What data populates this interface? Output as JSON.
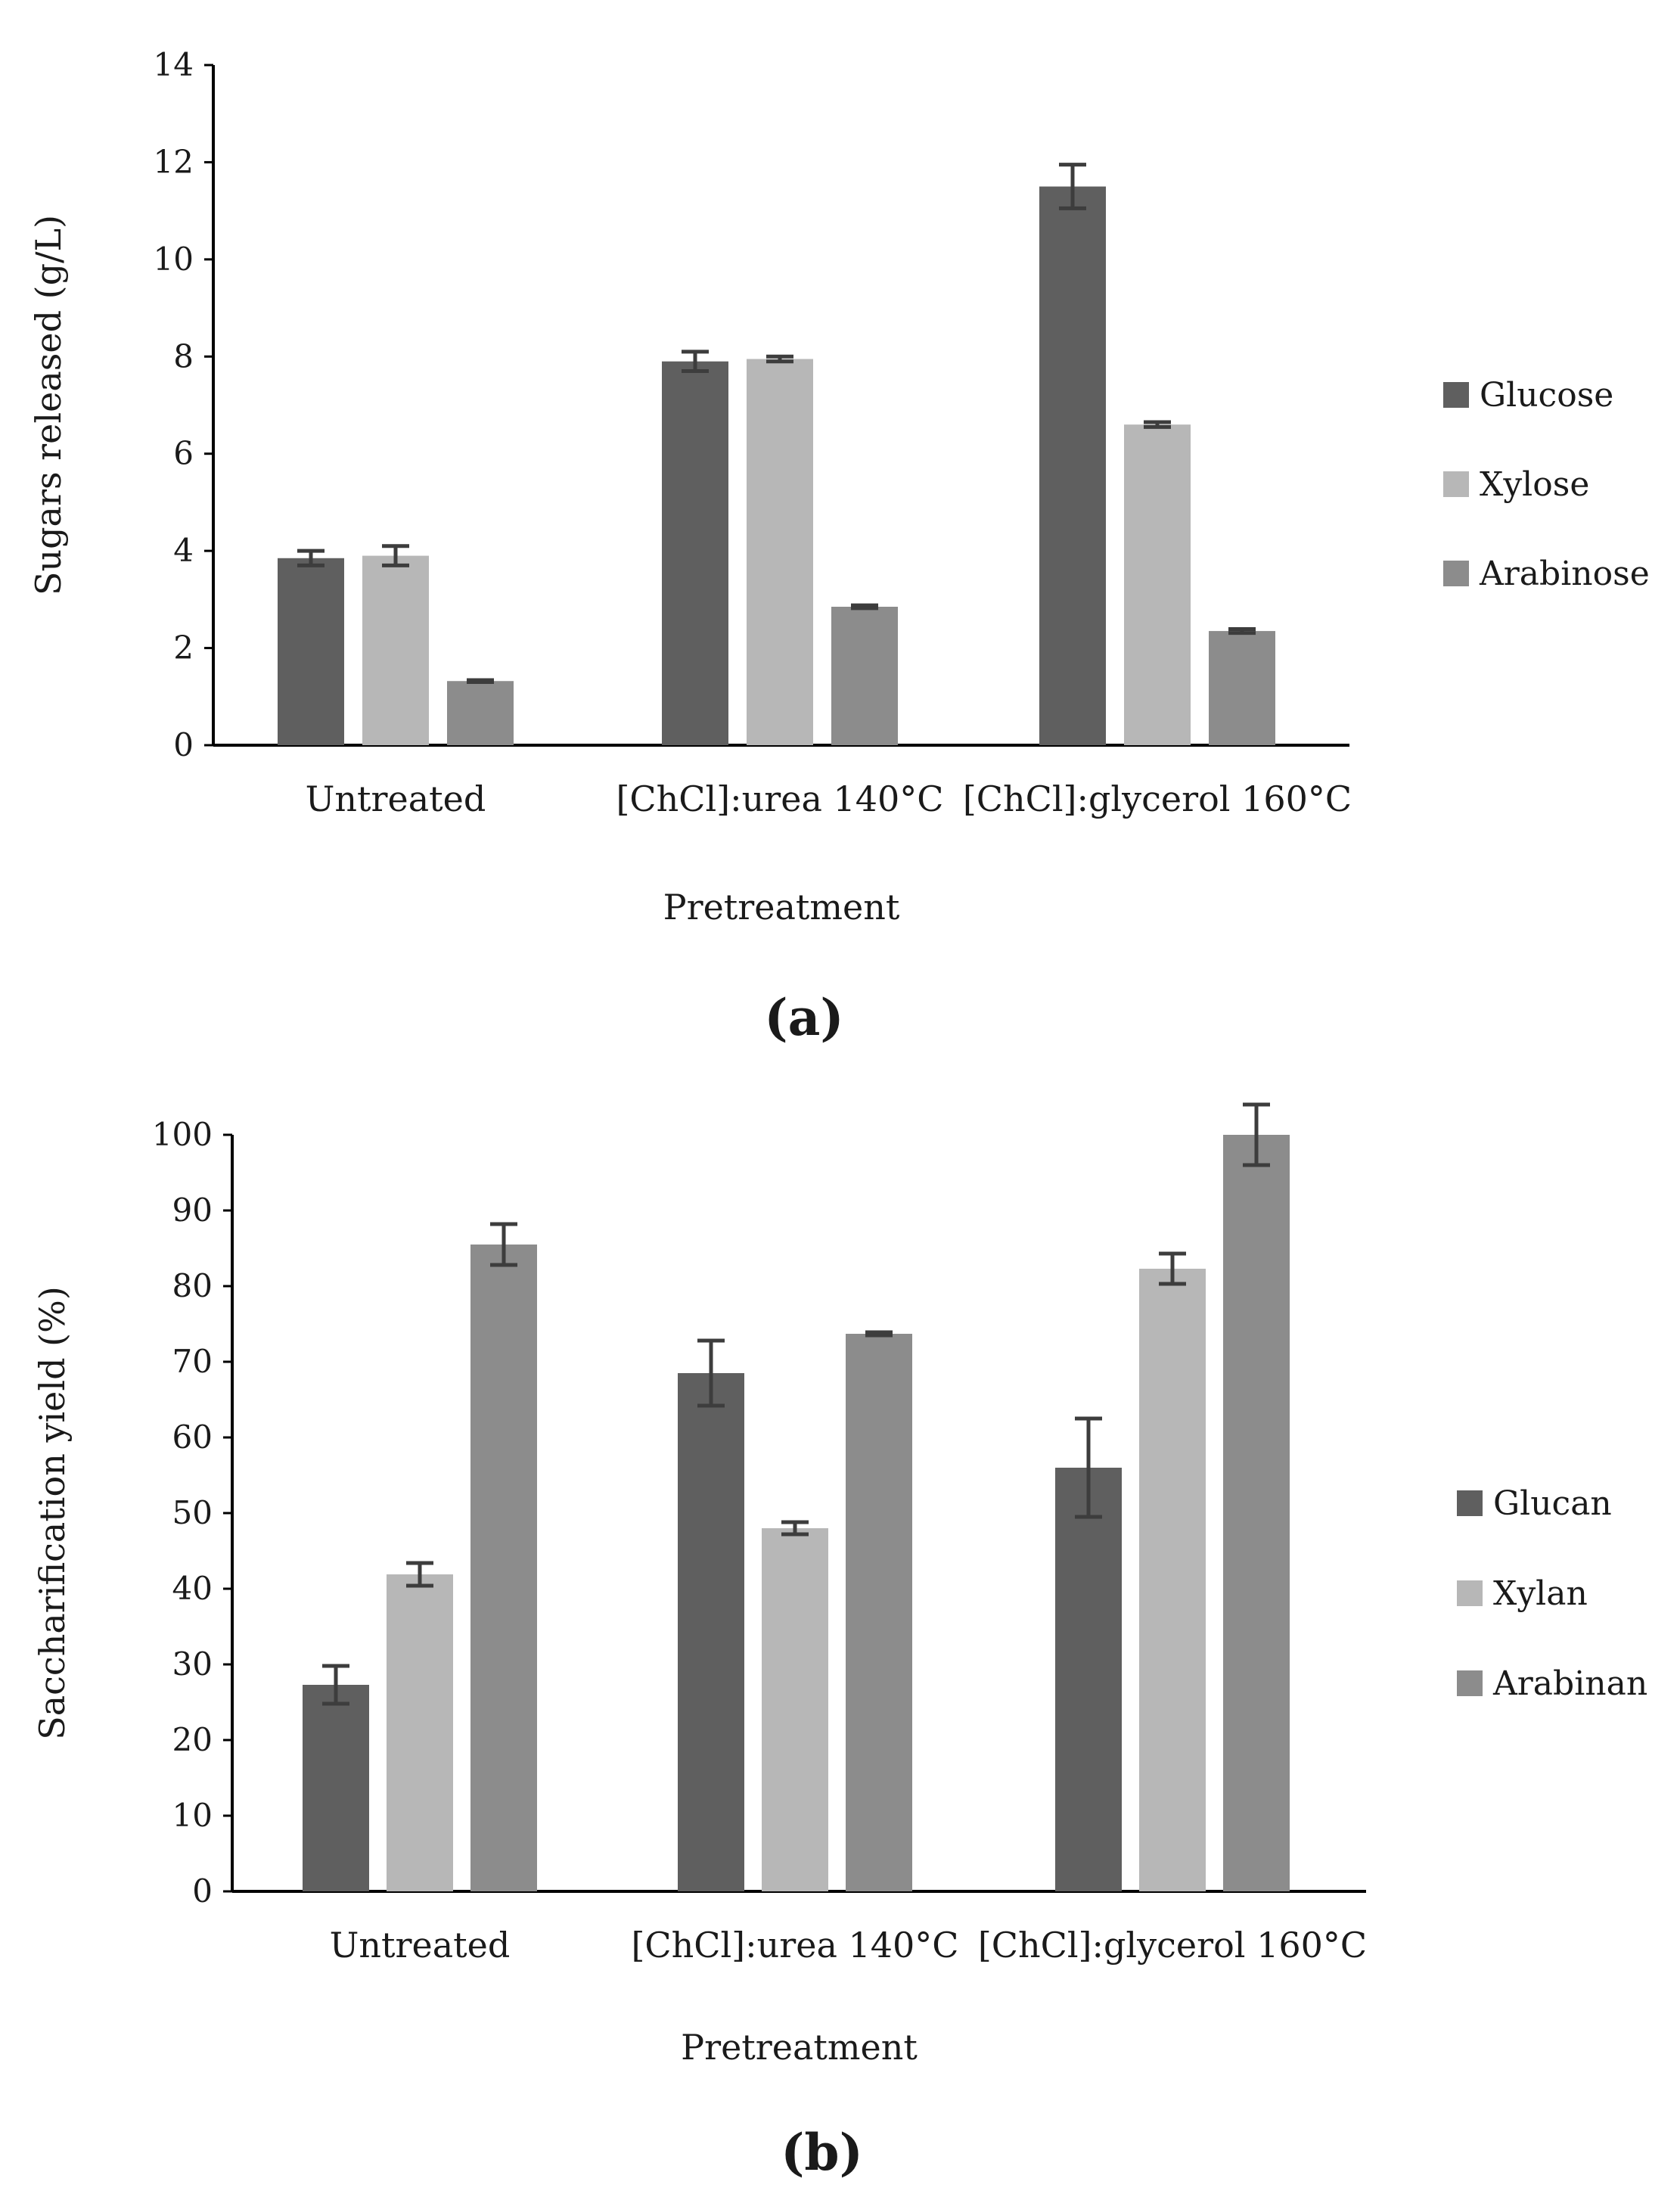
{
  "chart_data": [
    {
      "type": "bar",
      "panel_label": "(a)",
      "xlabel": "Pretreatment",
      "ylabel": "Sugars released  (g/L)",
      "ylim": [
        0,
        14
      ],
      "yticks": [
        0,
        2,
        4,
        6,
        8,
        10,
        12,
        14
      ],
      "categories": [
        "Untreated",
        "[ChCl]:urea 140°C",
        "[ChCl]:glycerol 160°C"
      ],
      "series": [
        {
          "name": "Glucose",
          "color": "#5f5f5f",
          "values": [
            3.85,
            7.9,
            11.5
          ],
          "errors": [
            0.15,
            0.2,
            0.45
          ]
        },
        {
          "name": "Xylose",
          "color": "#b7b7b7",
          "values": [
            3.9,
            7.95,
            6.6
          ],
          "errors": [
            0.2,
            0.05,
            0.05
          ]
        },
        {
          "name": "Arabinose",
          "color": "#8c8c8c",
          "values": [
            1.32,
            2.85,
            2.35
          ],
          "errors": [
            0.02,
            0.03,
            0.04
          ]
        }
      ],
      "grid": false,
      "legend_position": "right"
    },
    {
      "type": "bar",
      "panel_label": "(b)",
      "xlabel": "Pretreatment",
      "ylabel": "Saccharification yield (%)",
      "ylim": [
        0,
        100
      ],
      "yticks": [
        0,
        10,
        20,
        30,
        40,
        50,
        60,
        70,
        80,
        90,
        100
      ],
      "categories": [
        "Untreated",
        "[ChCl]:urea 140°C",
        "[ChCl]:glycerol 160°C"
      ],
      "series": [
        {
          "name": "Glucan",
          "color": "#5f5f5f",
          "values": [
            27.3,
            68.5,
            56.0
          ],
          "errors": [
            2.5,
            4.3,
            6.5
          ]
        },
        {
          "name": "Xylan",
          "color": "#b7b7b7",
          "values": [
            41.9,
            48.0,
            82.3
          ],
          "errors": [
            1.5,
            0.8,
            2.0
          ]
        },
        {
          "name": "Arabinan",
          "color": "#8c8c8c",
          "values": [
            85.5,
            73.7,
            100.0
          ],
          "errors": [
            2.7,
            0.2,
            4.0
          ]
        }
      ],
      "grid": false,
      "legend_position": "right"
    }
  ]
}
